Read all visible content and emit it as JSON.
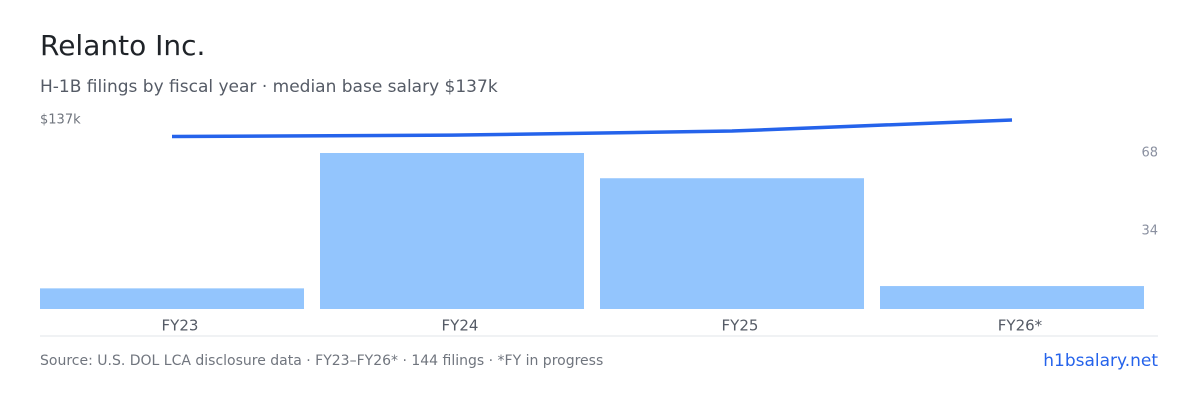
{
  "chart_data": {
    "type": "bar-line",
    "title": "Relanto Inc.",
    "subtitle": "H-1B filings by fiscal year · median base salary $137k",
    "categories": [
      "FY23",
      "FY24",
      "FY25",
      "FY26*"
    ],
    "series": [
      {
        "type": "bar",
        "color": "#93c5fd",
        "values": [
          9,
          68,
          57,
          10
        ],
        "axis": "y2"
      },
      {
        "type": "line",
        "color": "#2563eb",
        "values": [
          125,
          126,
          129,
          137
        ]
      }
    ],
    "ylim": [
      0,
      137
    ],
    "yticks": [
      {
        "value": 137,
        "label": "$137k"
      }
    ],
    "y2lim": [
      0,
      68
    ],
    "y2ticks": [
      34,
      68
    ],
    "note": "Source: U.S. DOL LCA disclosure data · FY23–FY26* · 144 filings · *FY in progress",
    "link": "h1bsalary.net"
  }
}
